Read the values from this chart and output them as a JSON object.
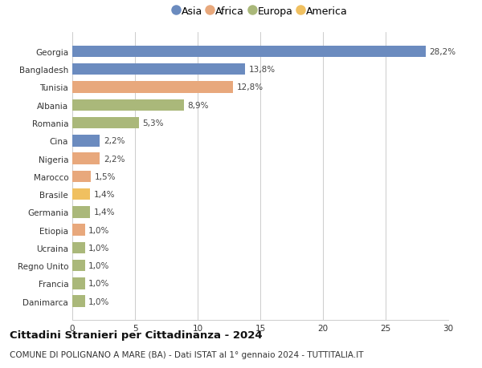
{
  "countries": [
    "Georgia",
    "Bangladesh",
    "Tunisia",
    "Albania",
    "Romania",
    "Cina",
    "Nigeria",
    "Marocco",
    "Brasile",
    "Germania",
    "Etiopia",
    "Ucraina",
    "Regno Unito",
    "Francia",
    "Danimarca"
  ],
  "values": [
    28.2,
    13.8,
    12.8,
    8.9,
    5.3,
    2.2,
    2.2,
    1.5,
    1.4,
    1.4,
    1.0,
    1.0,
    1.0,
    1.0,
    1.0
  ],
  "labels": [
    "28,2%",
    "13,8%",
    "12,8%",
    "8,9%",
    "5,3%",
    "2,2%",
    "2,2%",
    "1,5%",
    "1,4%",
    "1,4%",
    "1,0%",
    "1,0%",
    "1,0%",
    "1,0%",
    "1,0%"
  ],
  "continents": [
    "Asia",
    "Asia",
    "Africa",
    "Europa",
    "Europa",
    "Asia",
    "Africa",
    "Africa",
    "America",
    "Europa",
    "Africa",
    "Europa",
    "Europa",
    "Europa",
    "Europa"
  ],
  "continent_colors": {
    "Asia": "#6b8bbf",
    "Africa": "#e8a87c",
    "Europa": "#aab87a",
    "America": "#f0c060"
  },
  "legend_order": [
    "Asia",
    "Africa",
    "Europa",
    "America"
  ],
  "title": "Cittadini Stranieri per Cittadinanza - 2024",
  "subtitle": "COMUNE DI POLIGNANO A MARE (BA) - Dati ISTAT al 1° gennaio 2024 - TUTTITALIA.IT",
  "xlim": [
    0,
    30
  ],
  "xticks": [
    0,
    5,
    10,
    15,
    20,
    25,
    30
  ],
  "background_color": "#ffffff",
  "bar_height": 0.65,
  "grid_color": "#cccccc",
  "title_fontsize": 9.5,
  "subtitle_fontsize": 7.5,
  "label_fontsize": 7.5,
  "tick_fontsize": 7.5,
  "legend_fontsize": 9
}
